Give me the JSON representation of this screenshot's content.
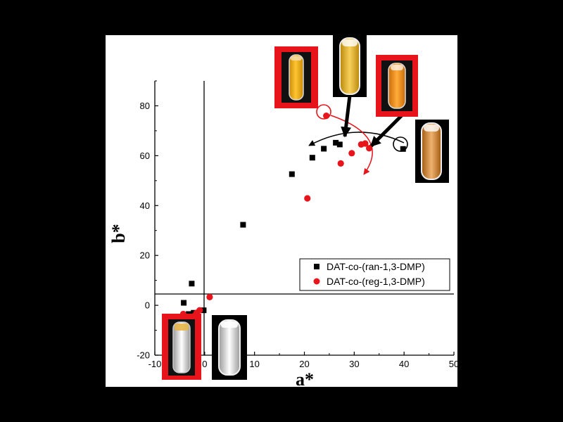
{
  "chart_data": {
    "type": "scatter",
    "xlabel": "a*",
    "ylabel": "b*",
    "xlim": [
      -10,
      50
    ],
    "ylim": [
      -20,
      90
    ],
    "x_ticks": [
      -10,
      0,
      10,
      20,
      30,
      40,
      50
    ],
    "y_ticks": [
      -20,
      0,
      20,
      40,
      60,
      80
    ],
    "grid": false,
    "legend_position": "lower-right",
    "series": [
      {
        "name": "DAT-co-(ran-1,3-DMP)",
        "marker": "square",
        "color": "#000000",
        "points": [
          [
            -4.2,
            1.0
          ],
          [
            -2.6,
            8.7
          ],
          [
            -3.2,
            -3.5
          ],
          [
            -2.2,
            -3.0
          ],
          [
            -0.2,
            -2.0
          ],
          [
            7.7,
            32.3
          ],
          [
            17.5,
            52.6
          ],
          [
            21.6,
            59.2
          ],
          [
            23.9,
            62.8
          ],
          [
            26.3,
            65.2
          ],
          [
            27.1,
            64.5
          ],
          [
            39.8,
            62.7
          ]
        ]
      },
      {
        "name": "DAT-co-(reg-1,3-DMP)",
        "marker": "circle",
        "color": "#e8141b",
        "points": [
          [
            -4.8,
            -5.5
          ],
          [
            -4.0,
            -5.2
          ],
          [
            -3.2,
            -5.0
          ],
          [
            -2.6,
            -4.8
          ],
          [
            -2.1,
            -4.3
          ],
          [
            -1.6,
            -3.0
          ],
          [
            -1.0,
            -2.0
          ],
          [
            -4.3,
            -3.5
          ],
          [
            1.0,
            3.3
          ],
          [
            20.6,
            42.9
          ],
          [
            27.3,
            56.9
          ],
          [
            29.5,
            61.0
          ],
          [
            31.4,
            64.5
          ],
          [
            32.2,
            64.9
          ],
          [
            33.0,
            63.0
          ],
          [
            24.4,
            76.0
          ]
        ]
      }
    ]
  },
  "colors": {
    "ran_series": "#000000",
    "reg_series": "#e8141b",
    "red_frame": "#e8141b",
    "panel_background": "#ffffff",
    "outer_background": "#000000"
  },
  "thumbnails": [
    {
      "id": "reg-high-a",
      "frame": "red",
      "liquid": "amber"
    },
    {
      "id": "ran-mid-a",
      "frame": "black",
      "liquid": "golden"
    },
    {
      "id": "reg-highest-a",
      "frame": "red",
      "liquid": "orange"
    },
    {
      "id": "ran-highest-a",
      "frame": "black",
      "liquid": "orange-tan"
    },
    {
      "id": "reg-origin",
      "frame": "red",
      "liquid": "clear"
    },
    {
      "id": "ran-origin",
      "frame": "black",
      "liquid": "clear"
    }
  ]
}
